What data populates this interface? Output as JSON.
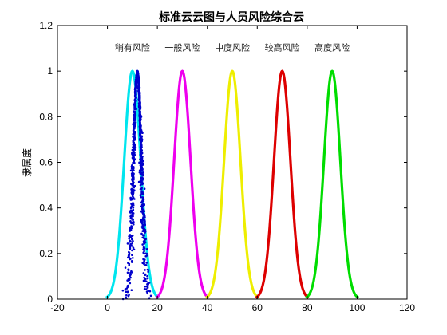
{
  "chart_data": {
    "type": "line",
    "title": "标准云云图与人员风险综合云",
    "xlabel": "",
    "ylabel": "隶属度",
    "xlim": [
      -20,
      120
    ],
    "ylim": [
      0,
      1.2
    ],
    "x_ticks": [
      -20,
      0,
      20,
      40,
      60,
      80,
      100,
      120
    ],
    "y_ticks": [
      0,
      0.2,
      0.4,
      0.6,
      0.8,
      1,
      1.2
    ],
    "x_tick_labels": [
      "-20",
      "0",
      "20",
      "40",
      "60",
      "80",
      "100",
      "120"
    ],
    "y_tick_labels": [
      "0",
      "0.2",
      "0.4",
      "0.6",
      "0.8",
      "1",
      "1.2"
    ],
    "grid": false,
    "series": [
      {
        "name": "稍有风险",
        "center": 10,
        "entropy": 3.3,
        "color": "#00e5ee"
      },
      {
        "name": "一般风险",
        "center": 30,
        "entropy": 3.3,
        "color": "#ee00ee"
      },
      {
        "name": "中度风险",
        "center": 50,
        "entropy": 3.3,
        "color": "#eeee00"
      },
      {
        "name": "较高风险",
        "center": 70,
        "entropy": 3.3,
        "color": "#dd0000"
      },
      {
        "name": "高度风险",
        "center": 90,
        "entropy": 3.3,
        "color": "#00dd00"
      }
    ],
    "annotations": [
      {
        "text": "稍有风险",
        "x": 10,
        "y": 1.09
      },
      {
        "text": "一般风险",
        "x": 30,
        "y": 1.09
      },
      {
        "text": "中度风险",
        "x": 50,
        "y": 1.09
      },
      {
        "text": "较高风险",
        "x": 70,
        "y": 1.09
      },
      {
        "text": "高度风险",
        "x": 90,
        "y": 1.09
      }
    ],
    "scatter_cloud": {
      "center": 12,
      "entropy": 1.6,
      "hyper_entropy": 0.3,
      "color": "#0000cc"
    }
  }
}
